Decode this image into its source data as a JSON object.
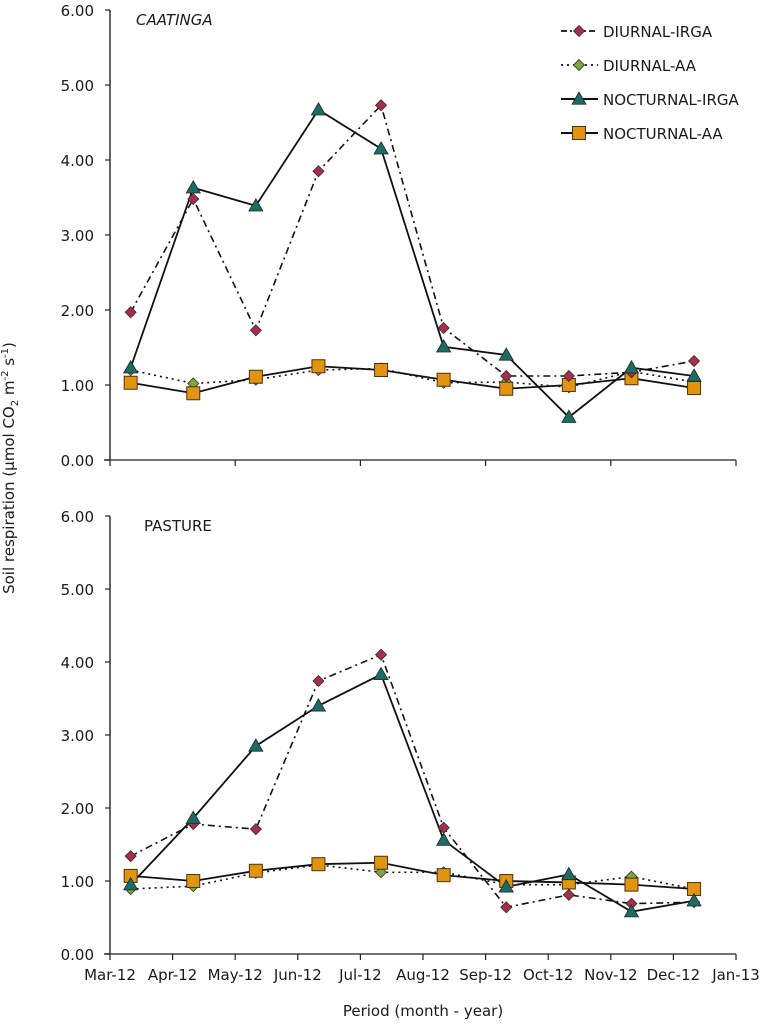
{
  "chart_data": {
    "type": "line",
    "ylabel_parts": {
      "main": "Soil respiration (µmol CO",
      "sub2": "2",
      "mid": " m",
      "sup1": "-2",
      "mid2": " s",
      "sup2": "-1",
      "end": ")"
    },
    "xlabel": "Period (month - year)",
    "x_tick_labels": [
      "Mar-12",
      "Apr-12",
      "May-12",
      "Jun-12",
      "Jul-12",
      "Aug-12",
      "Sep-12",
      "Oct-12",
      "Nov-12",
      "Dec-12",
      "Jan-13"
    ],
    "x_positions_months": [
      0.33,
      1.33,
      2.33,
      3.33,
      4.33,
      5.33,
      6.33,
      7.33,
      8.33,
      9.33
    ],
    "x_range_months": [
      0,
      10
    ],
    "ylim": [
      0,
      6
    ],
    "y_tick_labels": [
      "0.00",
      "1.00",
      "2.00",
      "3.00",
      "4.00",
      "5.00",
      "6.00"
    ],
    "grid": false,
    "legend": {
      "placement": "top-right",
      "entries": [
        {
          "name": "DIURNAL-IRGA",
          "marker": "diamond",
          "color": "#a3304e",
          "line": "dashdot"
        },
        {
          "name": "DIURNAL-AA",
          "marker": "diamond",
          "color": "#7aa83c",
          "line": "dotted"
        },
        {
          "name": "NOCTURNAL-IRGA",
          "marker": "triangle",
          "color": "#1d6b63",
          "line": "solid"
        },
        {
          "name": "NOCTURNAL-AA",
          "marker": "square",
          "color": "#e0940f",
          "line": "solid"
        }
      ]
    },
    "panels": [
      {
        "title": "CAATINGA",
        "title_italic": true,
        "show_x_tick_labels": false,
        "series": [
          {
            "name": "DIURNAL-IRGA",
            "values": [
              1.97,
              3.48,
              1.73,
              3.85,
              4.73,
              1.76,
              1.12,
              1.12,
              1.17,
              1.32
            ]
          },
          {
            "name": "DIURNAL-AA",
            "values": [
              1.2,
              1.02,
              1.07,
              1.2,
              1.22,
              1.03,
              1.04,
              0.97,
              1.18,
              1.04
            ]
          },
          {
            "name": "NOCTURNAL-IRGA",
            "values": [
              1.23,
              3.63,
              3.39,
              4.67,
              4.15,
              1.51,
              1.4,
              0.57,
              1.23,
              1.12
            ]
          },
          {
            "name": "NOCTURNAL-AA",
            "values": [
              1.03,
              0.89,
              1.11,
              1.25,
              1.2,
              1.07,
              0.95,
              1.0,
              1.09,
              0.96
            ]
          }
        ]
      },
      {
        "title": "PASTURE",
        "title_italic": false,
        "show_x_tick_labels": true,
        "series": [
          {
            "name": "DIURNAL-IRGA",
            "values": [
              1.34,
              1.78,
              1.71,
              3.74,
              4.1,
              1.73,
              0.64,
              0.81,
              0.69,
              0.71
            ]
          },
          {
            "name": "DIURNAL-AA",
            "values": [
              0.89,
              0.93,
              1.11,
              1.22,
              1.12,
              1.12,
              0.95,
              0.95,
              1.06,
              0.89
            ]
          },
          {
            "name": "NOCTURNAL-IRGA",
            "values": [
              0.95,
              1.86,
              2.85,
              3.4,
              3.83,
              1.56,
              0.92,
              1.09,
              0.58,
              0.73
            ]
          },
          {
            "name": "NOCTURNAL-AA",
            "values": [
              1.07,
              1.0,
              1.14,
              1.23,
              1.25,
              1.08,
              1.0,
              0.98,
              0.95,
              0.89
            ]
          }
        ]
      }
    ]
  }
}
